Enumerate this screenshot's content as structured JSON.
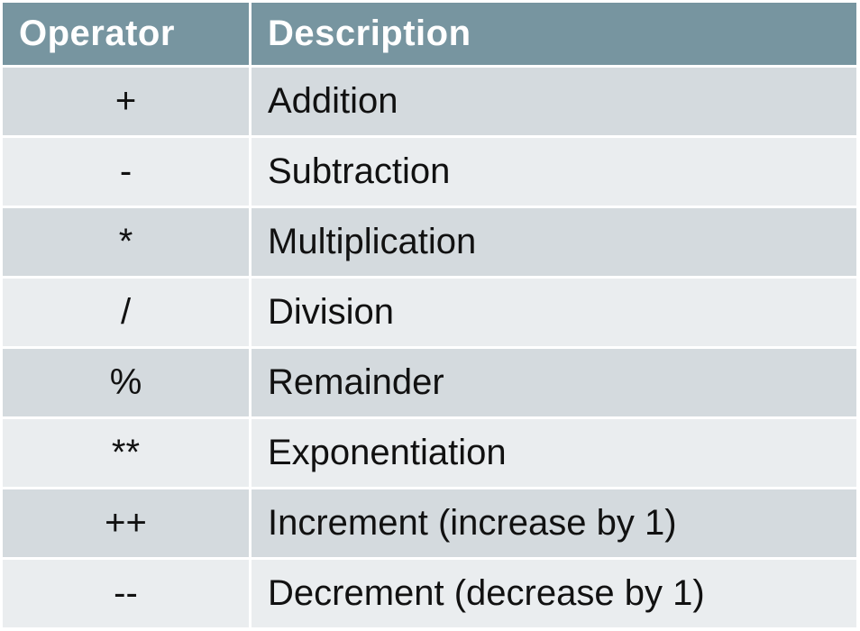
{
  "table": {
    "header_color": "#7795a0",
    "headers": {
      "operator": "Operator",
      "description": "Description"
    },
    "rows": [
      {
        "operator": "+",
        "description": "Addition"
      },
      {
        "operator": "-",
        "description": "Subtraction"
      },
      {
        "operator": "*",
        "description": "Multiplication"
      },
      {
        "operator": "/",
        "description": "Division"
      },
      {
        "operator": "%",
        "description": "Remainder"
      },
      {
        "operator": "**",
        "description": "Exponentiation"
      },
      {
        "operator": "++",
        "description": "Increment (increase by 1)"
      },
      {
        "operator": "--",
        "description": "Decrement (decrease by 1)"
      }
    ],
    "row_colors": [
      "#d4dade",
      "#eaedef"
    ]
  }
}
